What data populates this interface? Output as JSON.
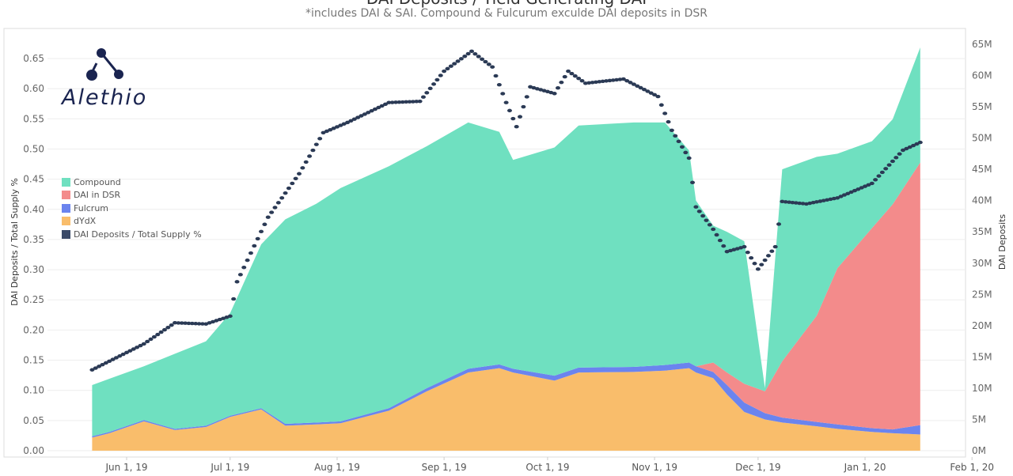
{
  "header": {
    "title": "DAI Deposits / Yield Generating DAI",
    "subtitle": "*includes DAI & SAI. Compound & Fulcurum exculde DAI deposits in DSR"
  },
  "logo": {
    "text": "Alethio"
  },
  "chart_data": {
    "type": "area",
    "title": "DAI Deposits / Yield Generating DAI",
    "subtitle": "*includes DAI & SAI. Compound & Fulcurum exculde DAI deposits in DSR",
    "ylabel": "DAI Deposits / Total Supply %",
    "y2label": "DAI Deposits",
    "ylim": [
      0,
      0.65
    ],
    "y2lim": [
      0,
      65
    ],
    "yticks": [
      "0.00",
      "0.05",
      "0.10",
      "0.15",
      "0.20",
      "0.25",
      "0.30",
      "0.35",
      "0.40",
      "0.45",
      "0.50",
      "0.55",
      "0.60",
      "0.65"
    ],
    "y2ticks": [
      "0M",
      "5M",
      "10M",
      "15M",
      "20M",
      "25M",
      "30M",
      "35M",
      "40M",
      "45M",
      "50M",
      "55M",
      "60M",
      "65M"
    ],
    "xticks": [
      "Jun 1, 19",
      "Jul 1, 19",
      "Aug 1, 19",
      "Sep 1, 19",
      "Oct 1, 19",
      "Nov 1, 19",
      "Dec 1, 19",
      "Jan 1, 20",
      "Feb 1, 20"
    ],
    "xtick_dates": [
      "2019-06-01",
      "2019-07-01",
      "2019-08-01",
      "2019-09-01",
      "2019-10-01",
      "2019-11-01",
      "2019-12-01",
      "2020-01-01",
      "2020-02-01"
    ],
    "legend": [
      "Compound",
      "DAI in DSR",
      "Fulcrum",
      "dYdX",
      "DAI Deposits / Total Supply %"
    ],
    "legend_placement": "left",
    "colors": {
      "Compound": "#6fe0c0",
      "DAI in DSR": "#f38b8b",
      "Fulcrum": "#6b84ee",
      "dYdX": "#f9bd6b",
      "ratio": "#2b3a55"
    },
    "stack_dates": [
      "2019-05-22",
      "2019-05-27",
      "2019-06-06",
      "2019-06-15",
      "2019-06-24",
      "2019-07-01",
      "2019-07-10",
      "2019-07-17",
      "2019-07-26",
      "2019-08-02",
      "2019-08-16",
      "2019-08-27",
      "2019-09-08",
      "2019-09-17",
      "2019-09-21",
      "2019-10-03",
      "2019-10-10",
      "2019-10-26",
      "2019-11-04",
      "2019-11-11",
      "2019-11-13",
      "2019-11-18",
      "2019-11-22",
      "2019-11-27",
      "2019-12-03",
      "2019-12-08",
      "2019-12-18",
      "2019-12-24",
      "2020-01-03",
      "2020-01-09",
      "2020-01-17"
    ],
    "series": [
      {
        "name": "dYdX",
        "unit": "M DAI",
        "values": [
          2.1,
          2.8,
          4.7,
          3.3,
          3.8,
          5.4,
          6.6,
          4.0,
          4.2,
          4.4,
          6.4,
          9.5,
          12.5,
          13.2,
          12.5,
          11.2,
          12.5,
          12.6,
          12.8,
          13.2,
          12.5,
          11.6,
          9,
          6.2,
          5,
          4.5,
          3.9,
          3.5,
          3,
          2.8,
          2.6
        ]
      },
      {
        "name": "Fulcrum",
        "unit": "M DAI",
        "values": [
          0.2,
          0.2,
          0.2,
          0.2,
          0.2,
          0.2,
          0.2,
          0.3,
          0.3,
          0.3,
          0.4,
          0.5,
          0.6,
          0.6,
          0.6,
          0.8,
          0.8,
          0.8,
          0.9,
          0.9,
          1,
          1,
          1.5,
          1.5,
          1,
          0.8,
          0.7,
          0.7,
          0.6,
          0.6,
          1.5
        ]
      },
      {
        "name": "DAI in DSR",
        "unit": "M DAI",
        "values": [
          0,
          0,
          0,
          0,
          0,
          0,
          0,
          0,
          0,
          0,
          0,
          0,
          0,
          0,
          0,
          0,
          0,
          0,
          0,
          0,
          0,
          1.5,
          2,
          3,
          3.5,
          9,
          17,
          25,
          32,
          36,
          42
        ]
      },
      {
        "name": "Compound",
        "unit": "M DAI",
        "values": [
          8.2,
          8.5,
          8.6,
          12,
          13.5,
          16.4,
          26.2,
          32.7,
          35,
          37.3,
          38.7,
          38.7,
          39.4,
          37.2,
          33.4,
          36.5,
          38.7,
          39.1,
          38.8,
          33.9,
          26.5,
          21.9,
          22.5,
          22.8,
          0.5,
          30.7,
          25.4,
          18.3,
          13.9,
          13.6,
          18.4
        ]
      }
    ],
    "ratio_series": {
      "name": "DAI Deposits / Total Supply %",
      "dates": [
        "2019-05-22",
        "2019-06-06",
        "2019-06-15",
        "2019-06-24",
        "2019-07-01",
        "2019-07-03",
        "2019-07-12",
        "2019-07-21",
        "2019-07-28",
        "2019-08-04",
        "2019-08-16",
        "2019-08-25",
        "2019-09-01",
        "2019-09-09",
        "2019-09-15",
        "2019-09-19",
        "2019-09-22",
        "2019-09-26",
        "2019-10-03",
        "2019-10-07",
        "2019-10-12",
        "2019-10-23",
        "2019-11-02",
        "2019-11-06",
        "2019-11-11",
        "2019-11-13",
        "2019-11-18",
        "2019-11-22",
        "2019-11-27",
        "2019-12-01",
        "2019-12-06",
        "2019-12-08",
        "2019-12-15",
        "2019-12-24",
        "2020-01-03",
        "2020-01-12",
        "2020-01-17"
      ],
      "values": [
        0.134,
        0.177,
        0.212,
        0.21,
        0.223,
        0.28,
        0.387,
        0.459,
        0.527,
        0.544,
        0.577,
        0.579,
        0.629,
        0.662,
        0.636,
        0.577,
        0.537,
        0.603,
        0.592,
        0.629,
        0.609,
        0.616,
        0.587,
        0.531,
        0.485,
        0.404,
        0.367,
        0.33,
        0.338,
        0.301,
        0.338,
        0.413,
        0.409,
        0.419,
        0.443,
        0.498,
        0.511
      ]
    }
  }
}
